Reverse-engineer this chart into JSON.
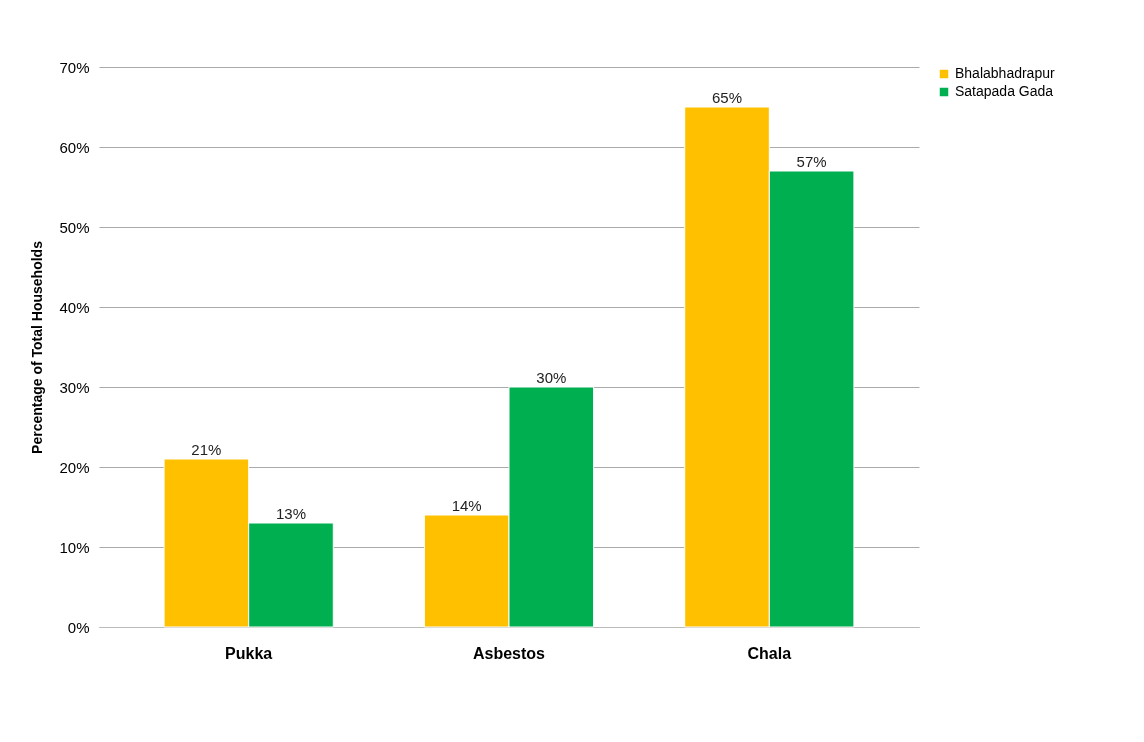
{
  "chart_data": {
    "type": "bar",
    "ylabel": "Percentage of Total Households",
    "categories": [
      "Pukka",
      "Asbestos",
      "Chala"
    ],
    "series": [
      {
        "name": "Bhalabhadrapur",
        "color": "#ffc000",
        "values": [
          21,
          14,
          65
        ],
        "value_labels": [
          "21%",
          "14%",
          "65%"
        ]
      },
      {
        "name": "Satapada Gada",
        "color": "#00b050",
        "values": [
          13,
          30,
          57
        ],
        "value_labels": [
          "13%",
          "30%",
          "57%"
        ]
      }
    ],
    "ylim": [
      0,
      70
    ],
    "yticks": [
      {
        "value": 0,
        "label": "0%"
      },
      {
        "value": 10,
        "label": "10%"
      },
      {
        "value": 20,
        "label": "20%"
      },
      {
        "value": 30,
        "label": "30%"
      },
      {
        "value": 40,
        "label": "40%"
      },
      {
        "value": 50,
        "label": "50%"
      },
      {
        "value": 60,
        "label": "60%"
      },
      {
        "value": 70,
        "label": "70%"
      }
    ],
    "grid": "y",
    "legend": "right"
  }
}
